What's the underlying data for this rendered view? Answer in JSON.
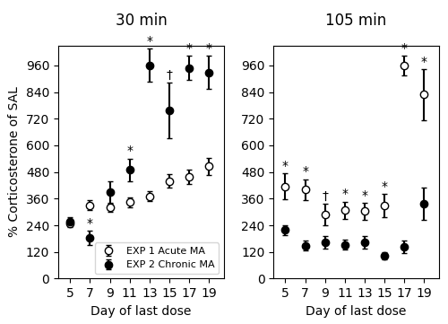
{
  "chart_data": [
    {
      "type": "scatter",
      "title": "30 min",
      "x_label": "Day of last dose",
      "y_label": "% Corticosterone of SAL",
      "x": [
        5,
        7,
        9,
        11,
        13,
        15,
        17,
        19
      ],
      "xlim": [
        3.8,
        20.5
      ],
      "xticks": [
        5,
        7,
        9,
        11,
        13,
        15,
        17,
        19
      ],
      "ylim": [
        0,
        1050
      ],
      "yticks": [
        0,
        120,
        240,
        360,
        480,
        600,
        720,
        840,
        960
      ],
      "legend": "lower right",
      "series": [
        {
          "name": "EXP 1 Acute MA",
          "color": "black",
          "marker": "open_circle",
          "values": [
            250,
            330,
            320,
            345,
            370,
            440,
            460,
            505
          ],
          "yerr": [
            18,
            22,
            18,
            22,
            22,
            32,
            32,
            38
          ]
        },
        {
          "name": "EXP 2 Chronic MA",
          "color": "black",
          "marker": "filled_circle",
          "values": [
            258,
            183,
            390,
            490,
            960,
            758,
            948,
            928
          ],
          "yerr": [
            18,
            32,
            50,
            50,
            75,
            125,
            55,
            75
          ]
        }
      ],
      "annotations": [
        {
          "x": 7,
          "series": "EXP 2 Chronic MA",
          "text": "*"
        },
        {
          "x": 11,
          "series": "EXP 2 Chronic MA",
          "text": "*"
        },
        {
          "x": 13,
          "series": "EXP 2 Chronic MA",
          "text": "*"
        },
        {
          "x": 15,
          "series": "EXP 2 Chronic MA",
          "text": "†"
        },
        {
          "x": 17,
          "series": "EXP 2 Chronic MA",
          "text": "*"
        },
        {
          "x": 19,
          "series": "EXP 2 Chronic MA",
          "text": "*"
        }
      ]
    },
    {
      "type": "scatter",
      "title": "105 min",
      "x_label": "Day of last dose",
      "x": [
        5,
        7,
        9,
        11,
        13,
        15,
        17,
        19
      ],
      "xlim": [
        3.8,
        20.5
      ],
      "xticks": [
        5,
        7,
        9,
        11,
        13,
        15,
        17,
        19
      ],
      "ylim": [
        0,
        1050
      ],
      "yticks": [
        0,
        120,
        240,
        360,
        480,
        600,
        720,
        840,
        960
      ],
      "series": [
        {
          "name": "EXP 1 Acute MA",
          "color": "black",
          "marker": "open_circle",
          "values": [
            415,
            400,
            288,
            308,
            303,
            328,
            958,
            828
          ],
          "yerr": [
            58,
            48,
            48,
            38,
            38,
            52,
            45,
            115
          ]
        },
        {
          "name": "EXP 2 Chronic MA",
          "color": "black",
          "marker": "filled_circle",
          "values": [
            218,
            148,
            163,
            153,
            163,
            103,
            143,
            338
          ],
          "yerr": [
            22,
            22,
            28,
            22,
            28,
            18,
            28,
            72
          ]
        }
      ],
      "annotations": [
        {
          "x": 5,
          "series": "EXP 1 Acute MA",
          "text": "*"
        },
        {
          "x": 7,
          "series": "EXP 1 Acute MA",
          "text": "*"
        },
        {
          "x": 9,
          "series": "EXP 1 Acute MA",
          "text": "†"
        },
        {
          "x": 11,
          "series": "EXP 1 Acute MA",
          "text": "*"
        },
        {
          "x": 13,
          "series": "EXP 1 Acute MA",
          "text": "*"
        },
        {
          "x": 15,
          "series": "EXP 1 Acute MA",
          "text": "*"
        },
        {
          "x": 17,
          "series": "EXP 1 Acute MA",
          "text": "*"
        },
        {
          "x": 19,
          "series": "EXP 1 Acute MA",
          "text": "*"
        }
      ]
    }
  ]
}
